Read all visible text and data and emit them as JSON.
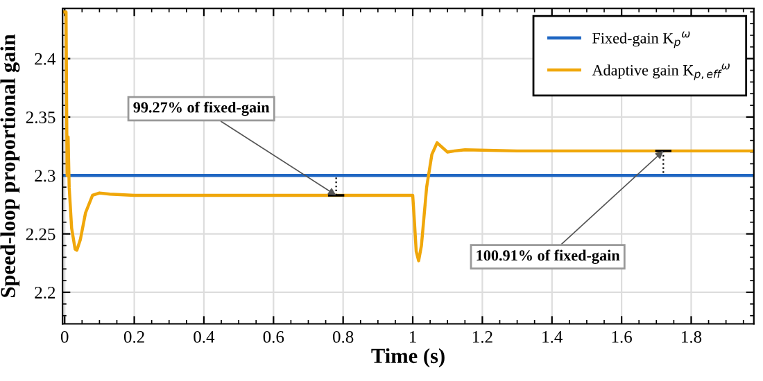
{
  "chart_data": {
    "type": "line",
    "xlabel": "Time (s)",
    "ylabel": "Speed-loop proportional gain",
    "xlim": [
      -0.006,
      1.98
    ],
    "ylim": [
      2.173,
      2.443
    ],
    "xticks": [
      0,
      0.2,
      0.4,
      0.6,
      0.8,
      1,
      1.2,
      1.4,
      1.6,
      1.8
    ],
    "yticks": [
      2.2,
      2.25,
      2.3,
      2.35,
      2.4
    ],
    "grid": true,
    "legend": "top right",
    "line_style": "solid",
    "marker": "none",
    "series": [
      {
        "name": "Fixed-gain K$_{p}$$^{ω}$",
        "color": "#1f66c2",
        "x": [
          0,
          1.98
        ],
        "values": [
          2.3,
          2.3
        ]
      },
      {
        "name": "Adaptive gain K$_{p,eff}$$^{ω}$",
        "color": "#f0a70a",
        "x": [
          0,
          0.004,
          0.007,
          0.01,
          0.013,
          0.02,
          0.03,
          0.035,
          0.045,
          0.06,
          0.08,
          0.1,
          0.13,
          0.2,
          0.6,
          1.0,
          1.005,
          1.01,
          1.017,
          1.025,
          1.04,
          1.055,
          1.07,
          1.085,
          1.1,
          1.12,
          1.15,
          1.3,
          1.98
        ],
        "values": [
          2.44,
          2.44,
          2.3,
          2.333,
          2.29,
          2.255,
          2.237,
          2.236,
          2.245,
          2.268,
          2.283,
          2.285,
          2.284,
          2.283,
          2.283,
          2.283,
          2.26,
          2.235,
          2.227,
          2.24,
          2.29,
          2.318,
          2.328,
          2.324,
          2.32,
          2.321,
          2.322,
          2.321,
          2.321
        ]
      }
    ],
    "annotations": [
      {
        "text": "99.27% of fixed-gain",
        "x": 0.78,
        "y": 2.283
      },
      {
        "text": "100.91% of fixed-gain",
        "x": 1.72,
        "y": 2.321
      }
    ]
  }
}
